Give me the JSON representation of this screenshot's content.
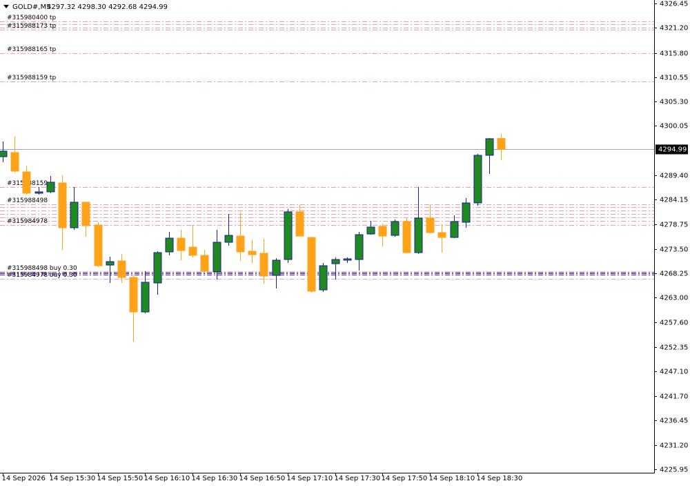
{
  "chart_data": {
    "type": "candlestick",
    "title": "GOLD#,M5",
    "subtitle": "4297.32 4298.30 4292.68 4294.99",
    "categories": [
      "14 Sep 2026",
      null,
      null,
      null,
      "14 Sep 15:30",
      null,
      null,
      null,
      "14 Sep 15:50",
      null,
      null,
      null,
      "14 Sep 16:10",
      null,
      null,
      null,
      "14 Sep 16:30",
      null,
      null,
      null,
      "14 Sep 16:50",
      null,
      null,
      null,
      "14 Sep 17:10",
      null,
      null,
      null,
      "14 Sep 17:30",
      null,
      null,
      null,
      "14 Sep 17:50",
      null,
      null,
      null,
      "14 Sep 18:10",
      null,
      null,
      null,
      "14 Sep 18:30",
      null,
      null
    ],
    "open": [
      4293.39,
      4294.29,
      4290.12,
      4285.51,
      4285.81,
      4287.74,
      4278.06,
      4283.57,
      4278.65,
      4270.01,
      4270.91,
      4267.34,
      4259.89,
      4266.15,
      4272.85,
      4275.82,
      4273.89,
      4272.1,
      4268.53,
      4274.93,
      4276.27,
      4272.99,
      4272.55,
      4267.78,
      4271.21,
      4281.49,
      4275.97,
      4264.66,
      4270.31,
      4271.06,
      4271.21,
      4276.72,
      4278.36,
      4276.42,
      4279.4,
      4272.7,
      4280.15,
      4277.02,
      4275.97,
      4279.25,
      4283.42,
      4293.69,
      4297.32
    ],
    "high": [
      4296.67,
      4297.71,
      4291.46,
      4286.85,
      4289.23,
      4289.37,
      4286.85,
      4283.57,
      4279.25,
      4271.8,
      4272.4,
      4267.93,
      4268.68,
      4272.99,
      4277.17,
      4277.61,
      4278.65,
      4273.29,
      4277.61,
      4281.04,
      4281.34,
      4275.52,
      4275.67,
      4271.5,
      4282.09,
      4282.98,
      4276.12,
      4270.46,
      4271.65,
      4271.65,
      4277.17,
      4279.55,
      4278.95,
      4279.85,
      4280.15,
      4286.85,
      4283.13,
      4278.8,
      4280.74,
      4284.46,
      4293.99,
      4297.41,
      4298.3
    ],
    "low": [
      4292.18,
      4289.97,
      4285.21,
      4285.21,
      4285.51,
      4273.29,
      4277.61,
      4276.12,
      4269.57,
      4266.15,
      4266.15,
      4253.49,
      4259.59,
      4263.62,
      4272.1,
      4271.06,
      4271.65,
      4268.23,
      4266.89,
      4274.19,
      4270.91,
      4270.46,
      4266.0,
      4264.96,
      4270.46,
      4276.12,
      4264.07,
      4264.22,
      4266.89,
      4270.46,
      4268.83,
      4276.57,
      4274.04,
      4276.12,
      4272.55,
      4272.4,
      4276.87,
      4272.7,
      4275.82,
      4278.06,
      4282.83,
      4289.67,
      4292.68
    ],
    "close": [
      4294.59,
      4290.27,
      4285.51,
      4285.81,
      4287.89,
      4278.06,
      4283.57,
      4278.51,
      4269.87,
      4270.76,
      4267.34,
      4259.89,
      4266.3,
      4272.7,
      4275.82,
      4273.14,
      4272.1,
      4268.68,
      4274.93,
      4276.42,
      4272.85,
      4272.25,
      4267.63,
      4271.06,
      4281.49,
      4276.27,
      4264.37,
      4269.87,
      4271.21,
      4271.36,
      4276.57,
      4278.21,
      4276.27,
      4279.4,
      4272.7,
      4280.15,
      4277.02,
      4275.97,
      4279.4,
      4283.42,
      4293.69,
      4297.27,
      4294.99
    ],
    "up_color": "#1f8a1f",
    "up_outline": "#1c1c9c",
    "down_color": "#ffa31a",
    "ylim": [
      4225.2,
      4327.2
    ],
    "yticks": [
      {
        "value": 4326.45,
        "label": "4326.45"
      },
      {
        "value": 4321.2,
        "label": "4321.20"
      },
      {
        "value": 4315.8,
        "label": "4315.80"
      },
      {
        "value": 4310.55,
        "label": "4310.55"
      },
      {
        "value": 4305.3,
        "label": "4305.30"
      },
      {
        "value": 4300.05,
        "label": "4300.05"
      },
      {
        "value": 4289.4,
        "label": "4289.40"
      },
      {
        "value": 4284.15,
        "label": "4284.15"
      },
      {
        "value": 4278.75,
        "label": "4278.75"
      },
      {
        "value": 4273.5,
        "label": "4273.50"
      },
      {
        "value": 4268.25,
        "label": "4268.25"
      },
      {
        "value": 4263.0,
        "label": "4263.00"
      },
      {
        "value": 4257.6,
        "label": "4257.60"
      },
      {
        "value": 4252.35,
        "label": "4252.35"
      },
      {
        "value": 4247.1,
        "label": "4247.10"
      },
      {
        "value": 4241.7,
        "label": "4241.70"
      },
      {
        "value": 4236.45,
        "label": "4236.45"
      },
      {
        "value": 4231.2,
        "label": "4231.20"
      },
      {
        "value": 4225.95,
        "label": "4225.95"
      }
    ],
    "bid": {
      "value": 4294.99,
      "label": "4294.99",
      "color": "#a0a0b8"
    },
    "order_lines": [
      {
        "label": "#315980400 tp",
        "value": 4322.58,
        "color": "#f29ab4"
      },
      {
        "value": 4321.98,
        "color": "#f29ab4"
      },
      {
        "value": 4321.24,
        "color": "#f29ab4"
      },
      {
        "label": "#315988173 tp",
        "value": 4320.79,
        "color": "#f29ab4"
      },
      {
        "label": "#315988165 tp",
        "value": 4315.73,
        "color": "#f29ab4"
      },
      {
        "label": "#315988159 tp",
        "value": 4309.62,
        "color": "#f29ab4"
      },
      {
        "label": "#315988159",
        "value": 4286.85,
        "color": "#f29ab4"
      },
      {
        "label": "#315988498",
        "value": 4283.13,
        "color": "#f29ab4"
      },
      {
        "value": 4282.53,
        "color": "#f29ab4"
      },
      {
        "value": 4281.79,
        "color": "#f29ab4"
      },
      {
        "value": 4281.04,
        "color": "#f29ab4"
      },
      {
        "value": 4280.3,
        "color": "#f29ab4"
      },
      {
        "value": 4279.55,
        "color": "#f29ab4"
      },
      {
        "label": "#315984978",
        "value": 4278.65,
        "color": "#f29ab4"
      },
      {
        "label": "#315988498 buy 0.30",
        "value": 4268.53,
        "color": "#8a1fc4"
      },
      {
        "value": 4268.23,
        "color": "#4b0082"
      },
      {
        "value": 4267.93,
        "color": "#3a3ad0"
      },
      {
        "label": "#315984978 buy 0.30",
        "value": 4267.04,
        "color": "#e8a0c8"
      }
    ]
  }
}
